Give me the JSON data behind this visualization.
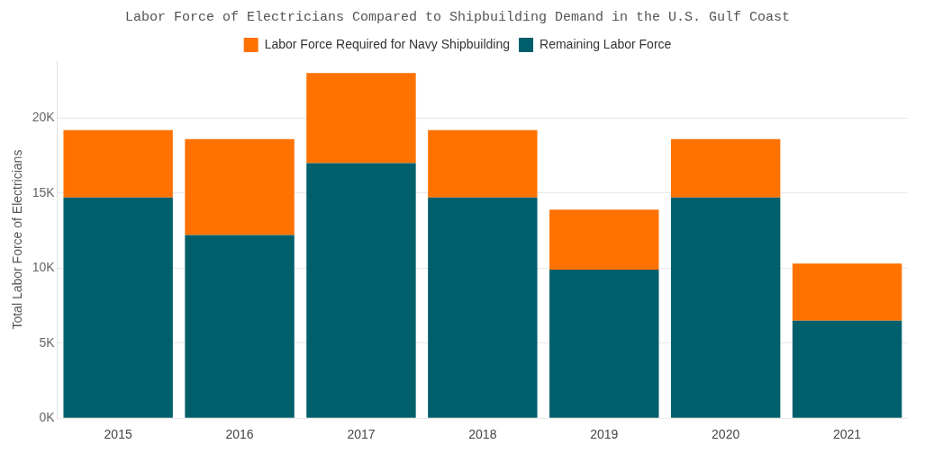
{
  "chart_data": {
    "type": "bar",
    "title": "Labor Force of Electricians Compared to Shipbuilding Demand in the U.S. Gulf Coast",
    "ylabel": "Total Labor Force of Electricians",
    "categories": [
      "2015",
      "2016",
      "2017",
      "2018",
      "2019",
      "2020",
      "2021"
    ],
    "stacked": true,
    "series": [
      {
        "name": "Remaining Labor Force",
        "color": "#005f6b",
        "values": [
          14700,
          12200,
          17000,
          14700,
          9900,
          14700,
          6500
        ]
      },
      {
        "name": "Labor Force Required for Navy Shipbuilding",
        "color": "#ff7200",
        "values": [
          4500,
          6400,
          6000,
          4500,
          4000,
          3900,
          3800
        ]
      }
    ],
    "ylim": [
      0,
      23800
    ],
    "yticks": [
      {
        "value": 0,
        "label": "0K"
      },
      {
        "value": 5000,
        "label": "5K"
      },
      {
        "value": 10000,
        "label": "10K"
      },
      {
        "value": 15000,
        "label": "15K"
      },
      {
        "value": 20000,
        "label": "20K"
      }
    ],
    "grid": "y",
    "legend": "top"
  }
}
